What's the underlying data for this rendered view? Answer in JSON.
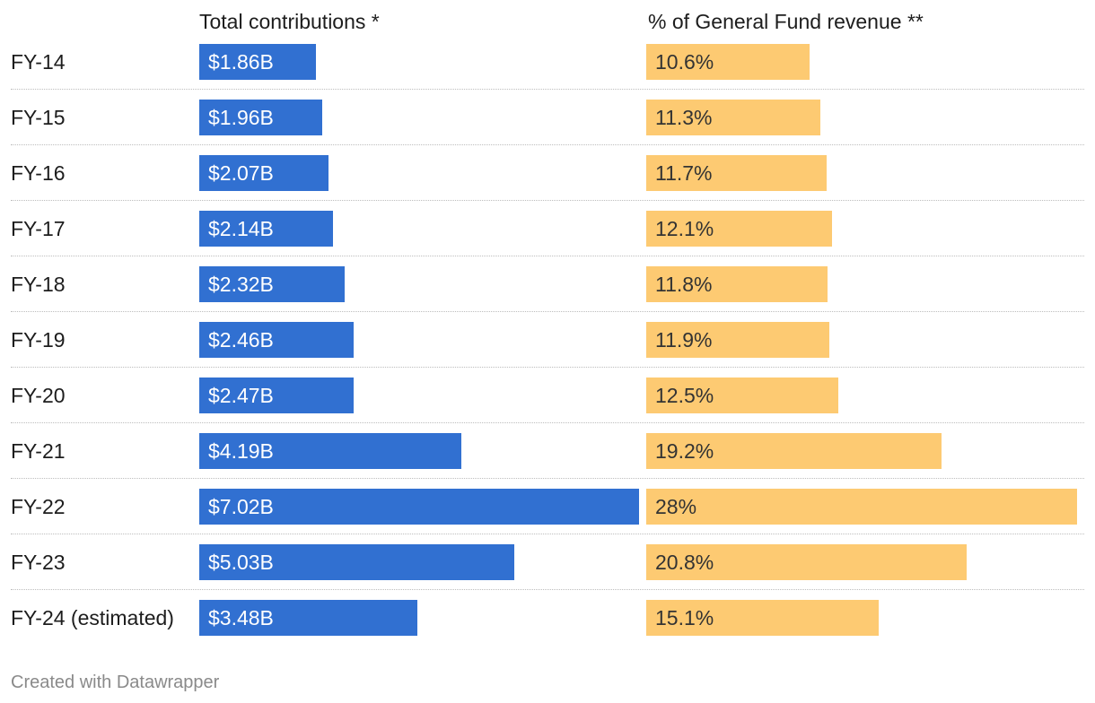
{
  "chart_data": {
    "type": "bar",
    "categories": [
      "FY-14",
      "FY-15",
      "FY-16",
      "FY-17",
      "FY-18",
      "FY-19",
      "FY-20",
      "FY-21",
      "FY-22",
      "FY-23",
      "FY-24 (estimated)"
    ],
    "series": [
      {
        "name": "Total contributions *",
        "values": [
          1.86,
          1.96,
          2.07,
          2.14,
          2.32,
          2.46,
          2.47,
          4.19,
          7.02,
          5.03,
          3.48
        ],
        "labels": [
          "$1.86B",
          "$1.96B",
          "$2.07B",
          "$2.14B",
          "$2.32B",
          "$2.46B",
          "$2.47B",
          "$4.19B",
          "$7.02B",
          "$5.03B",
          "$3.48B"
        ],
        "color": "#3170d1"
      },
      {
        "name": "% of General Fund revenue **",
        "values": [
          10.6,
          11.3,
          11.7,
          12.1,
          11.8,
          11.9,
          12.5,
          19.2,
          28,
          20.8,
          15.1
        ],
        "labels": [
          "10.6%",
          "11.3%",
          "11.7%",
          "12.1%",
          "11.8%",
          "11.9%",
          "12.5%",
          "19.2%",
          "28%",
          "20.8%",
          "15.1%"
        ],
        "color": "#fdca72"
      }
    ],
    "title": "",
    "xlabel": "",
    "ylabel": "",
    "xlim": [
      [
        0,
        7.02
      ],
      [
        0,
        28
      ]
    ]
  },
  "footer": "Created with Datawrapper"
}
